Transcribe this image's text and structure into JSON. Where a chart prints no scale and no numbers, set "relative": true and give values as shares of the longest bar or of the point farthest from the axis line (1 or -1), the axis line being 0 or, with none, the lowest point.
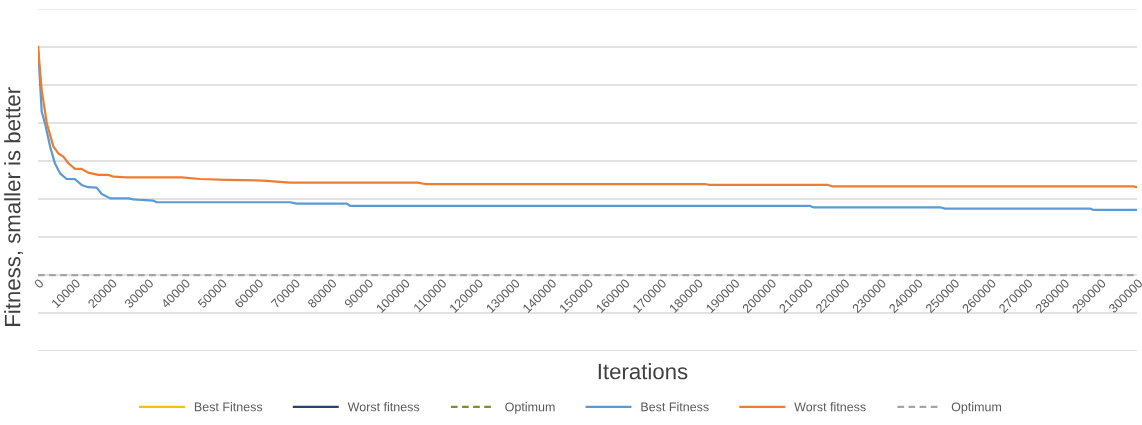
{
  "chart_data": {
    "type": "line",
    "relative": true,
    "xlabel": "Iterations",
    "ylabel": "Fitness, smaller is better",
    "xlim": [
      0,
      300000
    ],
    "xticks": [
      0,
      10000,
      20000,
      30000,
      40000,
      50000,
      60000,
      70000,
      80000,
      90000,
      100000,
      110000,
      120000,
      130000,
      140000,
      150000,
      160000,
      170000,
      180000,
      190000,
      200000,
      210000,
      220000,
      230000,
      240000,
      250000,
      260000,
      270000,
      280000,
      290000,
      300000
    ],
    "tick_labels": "x",
    "grid": "y",
    "legend": "bottom",
    "marker": "none",
    "series": [
      {
        "name": "Best Fitness",
        "color": "#ffc000"
      },
      {
        "name": "Worst fitness",
        "color": "#264478"
      },
      {
        "name": "Optimum",
        "color": "#8a8a2e",
        "line_style": "dashed"
      },
      {
        "name": "Best Fitness",
        "color": "#5b9bd5",
        "x": [
          0,
          1000,
          1900,
          3300,
          4600,
          6000,
          7800,
          10100,
          11900,
          13700,
          16000,
          17400,
          19700,
          24700,
          26000,
          28300,
          31500,
          32400,
          68800,
          70600,
          84300,
          85200,
          210800,
          211600,
          246200,
          247600,
          287200,
          288000,
          300000
        ],
        "values": [
          1.0,
          0.716,
          0.665,
          0.563,
          0.49,
          0.446,
          0.421,
          0.42,
          0.395,
          0.385,
          0.383,
          0.355,
          0.336,
          0.336,
          0.332,
          0.329,
          0.326,
          0.319,
          0.319,
          0.313,
          0.313,
          0.303,
          0.303,
          0.297,
          0.297,
          0.291,
          0.291,
          0.286,
          0.286
        ]
      },
      {
        "name": "Worst fitness",
        "color": "#ed7d31",
        "x": [
          0,
          1000,
          2400,
          4200,
          5500,
          6900,
          8300,
          10100,
          11900,
          13700,
          16500,
          19200,
          20600,
          24200,
          39200,
          44200,
          51500,
          61500,
          68800,
          103700,
          105600,
          182100,
          183200,
          215700,
          216800,
          298900,
          300000
        ],
        "values": [
          1.0,
          0.811,
          0.665,
          0.563,
          0.534,
          0.519,
          0.49,
          0.465,
          0.465,
          0.449,
          0.439,
          0.439,
          0.431,
          0.428,
          0.428,
          0.421,
          0.417,
          0.414,
          0.405,
          0.405,
          0.399,
          0.399,
          0.395,
          0.395,
          0.389,
          0.389,
          0.385
        ]
      },
      {
        "name": "Optimum",
        "color": "#a5a5a5",
        "line_style": "dashed",
        "x": [
          0,
          300000
        ],
        "values": [
          0,
          0
        ]
      }
    ]
  }
}
